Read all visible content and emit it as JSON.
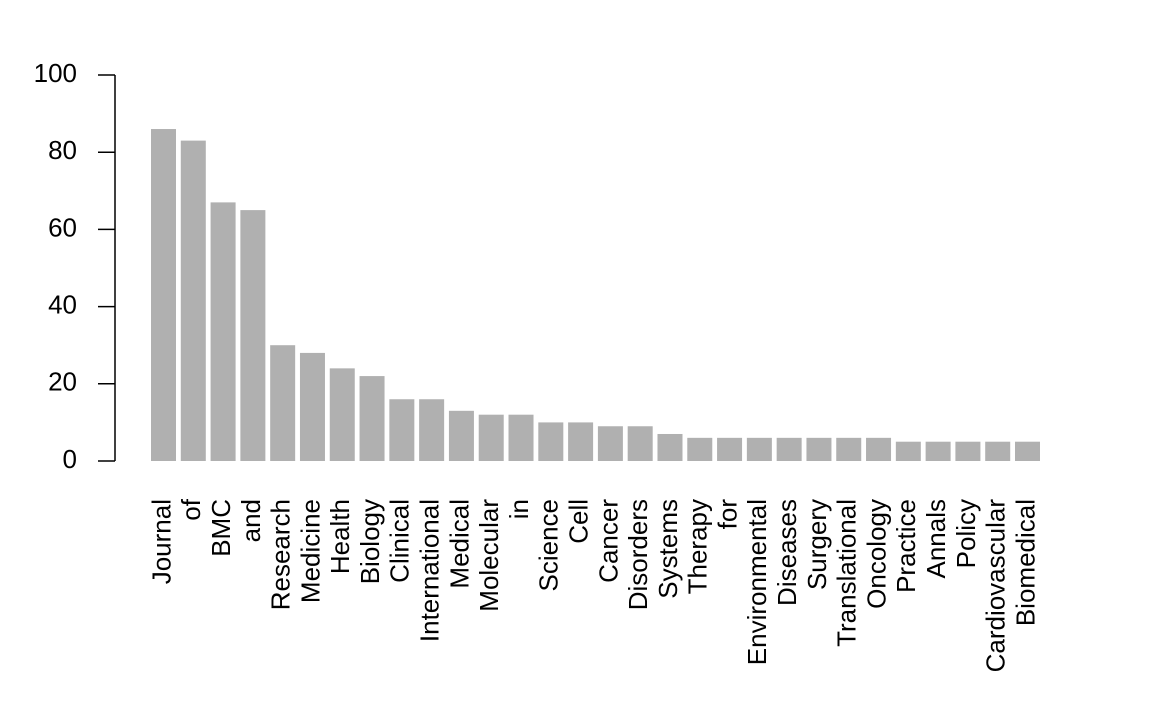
{
  "chart_data": {
    "type": "bar",
    "categories": [
      "Journal",
      "of",
      "BMC",
      "and",
      "Research",
      "Medicine",
      "Health",
      "Biology",
      "Clinical",
      "International",
      "Medical",
      "Molecular",
      "in",
      "Science",
      "Cell",
      "Cancer",
      "Disorders",
      "Systems",
      "Therapy",
      "for",
      "Environmental",
      "Diseases",
      "Surgery",
      "Translational",
      "Oncology",
      "Practice",
      "Annals",
      "Policy",
      "Cardiovascular",
      "Biomedical"
    ],
    "values": [
      86,
      83,
      67,
      65,
      30,
      28,
      24,
      22,
      16,
      16,
      13,
      12,
      12,
      10,
      10,
      9,
      9,
      7,
      6,
      6,
      6,
      6,
      6,
      6,
      6,
      5,
      5,
      5,
      5,
      5
    ],
    "color": "#b0b0b0",
    "ylim": [
      0,
      100
    ],
    "yticks": [
      0,
      20,
      40,
      60,
      80,
      100
    ]
  }
}
